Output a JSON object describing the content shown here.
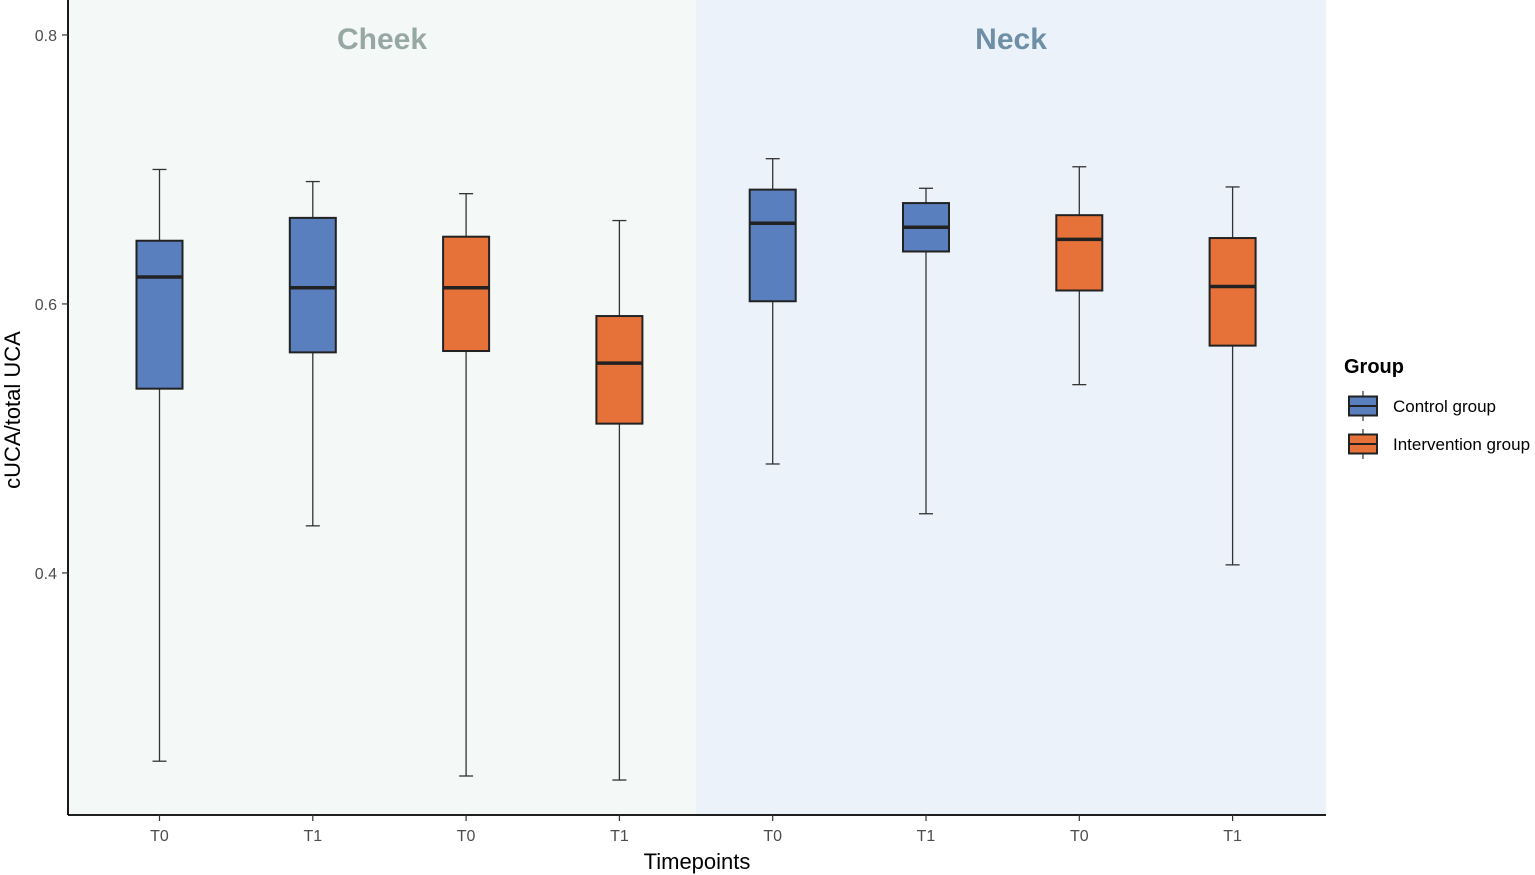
{
  "chart_data": {
    "type": "boxplot",
    "ylabel": "cUCA/total UCA",
    "xlabel": "Timepoints",
    "ylim": [
      0.22,
      0.826
    ],
    "yticks": [
      0.4,
      0.6,
      0.8
    ],
    "ytick_labels": [
      "0.4",
      "0.6",
      "0.8"
    ],
    "panels": [
      {
        "name": "Cheek",
        "color": "#97a8a4",
        "background": "#f4f8f7",
        "start_index": 0,
        "end_index": 3
      },
      {
        "name": "Neck",
        "color": "#6f8fa7",
        "background": "#ebf2f9",
        "start_index": 4,
        "end_index": 7
      }
    ],
    "legend": {
      "title": "Group",
      "position": "right",
      "entries": [
        {
          "label": "Control group",
          "color": "#5a7fbf"
        },
        {
          "label": "Intervention group",
          "color": "#e6723a"
        }
      ]
    },
    "boxes": [
      {
        "panel": "Cheek",
        "timepoint": "T0",
        "group": "Control group",
        "min": 0.26,
        "q1": 0.537,
        "median": 0.62,
        "q3": 0.647,
        "max": 0.7
      },
      {
        "panel": "Cheek",
        "timepoint": "T1",
        "group": "Control group",
        "min": 0.435,
        "q1": 0.564,
        "median": 0.612,
        "q3": 0.664,
        "max": 0.691
      },
      {
        "panel": "Cheek",
        "timepoint": "T0",
        "group": "Intervention group",
        "min": 0.249,
        "q1": 0.565,
        "median": 0.612,
        "q3": 0.65,
        "max": 0.682
      },
      {
        "panel": "Cheek",
        "timepoint": "T1",
        "group": "Intervention group",
        "min": 0.246,
        "q1": 0.511,
        "median": 0.556,
        "q3": 0.591,
        "max": 0.662
      },
      {
        "panel": "Neck",
        "timepoint": "T0",
        "group": "Control group",
        "min": 0.481,
        "q1": 0.602,
        "median": 0.66,
        "q3": 0.685,
        "max": 0.708
      },
      {
        "panel": "Neck",
        "timepoint": "T1",
        "group": "Control group",
        "min": 0.444,
        "q1": 0.639,
        "median": 0.657,
        "q3": 0.675,
        "max": 0.686
      },
      {
        "panel": "Neck",
        "timepoint": "T0",
        "group": "Intervention group",
        "min": 0.54,
        "q1": 0.61,
        "median": 0.648,
        "q3": 0.666,
        "max": 0.702
      },
      {
        "panel": "Neck",
        "timepoint": "T1",
        "group": "Intervention group",
        "min": 0.406,
        "q1": 0.569,
        "median": 0.613,
        "q3": 0.649,
        "max": 0.687
      }
    ]
  }
}
